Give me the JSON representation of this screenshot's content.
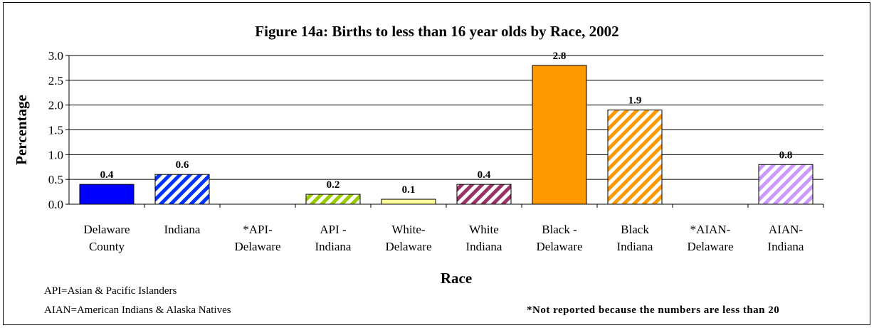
{
  "chart_data": {
    "type": "bar",
    "title": "Figure 14a:  Births to less than 16 year olds by Race, 2002",
    "xlabel": "Race",
    "ylabel": "Percentage",
    "ylim": [
      0,
      3.0
    ],
    "yticks": [
      "0.0",
      "0.5",
      "1.0",
      "1.5",
      "2.0",
      "2.5",
      "3.0"
    ],
    "grid": true,
    "categories": [
      [
        "Delaware",
        "County"
      ],
      [
        "Indiana",
        ""
      ],
      [
        "*API-",
        "Delaware"
      ],
      [
        "API  -",
        "Indiana"
      ],
      [
        "White-",
        "Delaware"
      ],
      [
        "White",
        "Indiana"
      ],
      [
        "Black -",
        "Delaware"
      ],
      [
        "Black",
        "Indiana"
      ],
      [
        "*AIAN-",
        "Delaware"
      ],
      [
        "AIAN-",
        "Indiana"
      ]
    ],
    "values": [
      0.4,
      0.6,
      null,
      0.2,
      0.1,
      0.4,
      2.8,
      1.9,
      null,
      0.8
    ],
    "value_labels": [
      "0.4",
      "0.6",
      "",
      "0.2",
      "0.1",
      "0.4",
      "2.8",
      "1.9",
      "",
      "0.8"
    ],
    "colors": [
      "#0000ff",
      "#0033ff",
      "",
      "#99cc00",
      "#ffff99",
      "#993366",
      "#ff9900",
      "#ff9900",
      "",
      "#cc99ff"
    ],
    "patterns": [
      "solid",
      "hatch",
      "",
      "hatch",
      "solid",
      "hatch",
      "solid",
      "hatch",
      "",
      "hatch"
    ]
  },
  "notes": {
    "api": "API=Asian & Pacific Islanders",
    "aian": "AIAN=American Indians & Alaska Natives",
    "footnote": "*Not reported because the numbers are less than 20"
  }
}
